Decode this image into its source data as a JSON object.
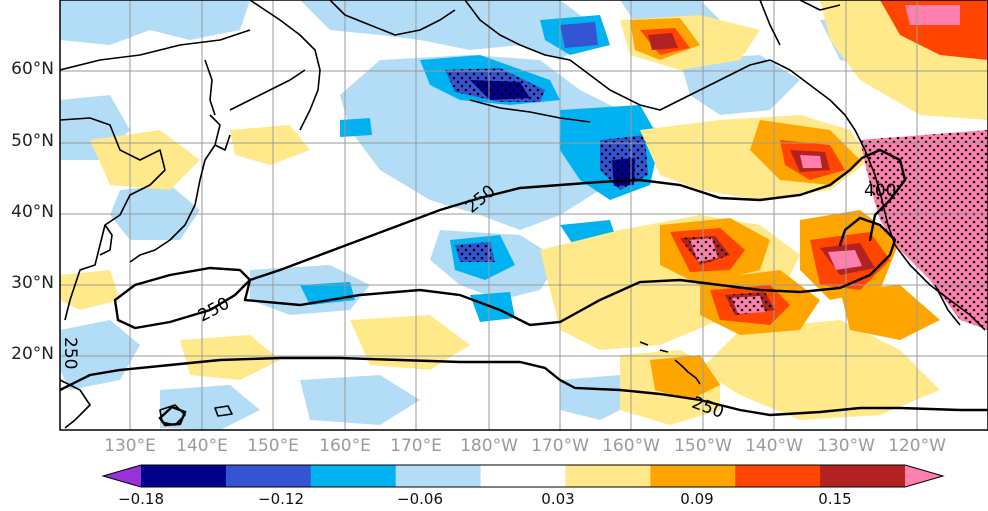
{
  "map": {
    "lat_labels": [
      "60°N",
      "50°N",
      "40°N",
      "30°N",
      "20°N"
    ],
    "lon_labels": [
      "130°E",
      "140°E",
      "150°E",
      "160°E",
      "170°E",
      "180°W",
      "170°W",
      "160°W",
      "150°W",
      "140°W",
      "130°W",
      "120°W"
    ],
    "contour_labels": [
      "250",
      "250",
      "250",
      "250",
      "400"
    ],
    "colorbar_labels": [
      "−0.18",
      "−0.12",
      "−0.06",
      "0.03",
      "0.09",
      "0.15"
    ],
    "colorbar_colors": [
      "#9a31d8",
      "#00008b",
      "#3355d4",
      "#00b3f0",
      "#b3dcf7",
      "#ffffff",
      "#ffe98a",
      "#ffa500",
      "#ff4500",
      "#b22222",
      "#ff7fae"
    ],
    "contour_color": "#000000",
    "coast_color": "#000000"
  }
}
